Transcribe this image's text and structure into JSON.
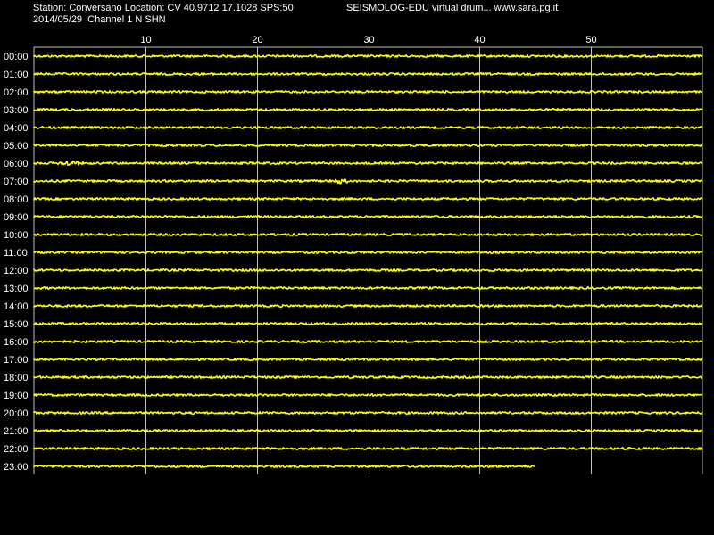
{
  "header": {
    "station_info": "Station: Conversano Location: CV 40.9712 17.1028 SPS:50",
    "program_info": "SEISMOLOG-EDU virtual drum... www.sara.pg.it",
    "date_channel": "2014/05/29  Channel 1 N SHN"
  },
  "chart_data": {
    "type": "line",
    "xlim": [
      0,
      60
    ],
    "x_ticks": [
      "10",
      "20",
      "30",
      "40",
      "50"
    ],
    "x_tick_values": [
      10,
      20,
      30,
      40,
      50
    ],
    "rows": [
      "00:00",
      "01:00",
      "02:00",
      "03:00",
      "04:00",
      "05:00",
      "06:00",
      "07:00",
      "08:00",
      "09:00",
      "10:00",
      "11:00",
      "12:00",
      "13:00",
      "14:00",
      "15:00",
      "16:00",
      "17:00",
      "18:00",
      "19:00",
      "20:00",
      "21:00",
      "22:00",
      "23:00"
    ],
    "row_end_minute": [
      60,
      60,
      60,
      60,
      60,
      60,
      60,
      60,
      60,
      60,
      60,
      60,
      60,
      60,
      60,
      60,
      60,
      60,
      60,
      60,
      60,
      60,
      60,
      45
    ],
    "events": [
      {
        "row": "06:00",
        "start_minute": 2,
        "end_minute": 4.5
      },
      {
        "row": "07:00",
        "start_minute": 26.5,
        "end_minute": 28.5
      }
    ],
    "grid": true,
    "colors": {
      "trace": "#ffff00",
      "grid": "#c0c0c0",
      "text": "#ffffff",
      "background": "#000000"
    }
  }
}
